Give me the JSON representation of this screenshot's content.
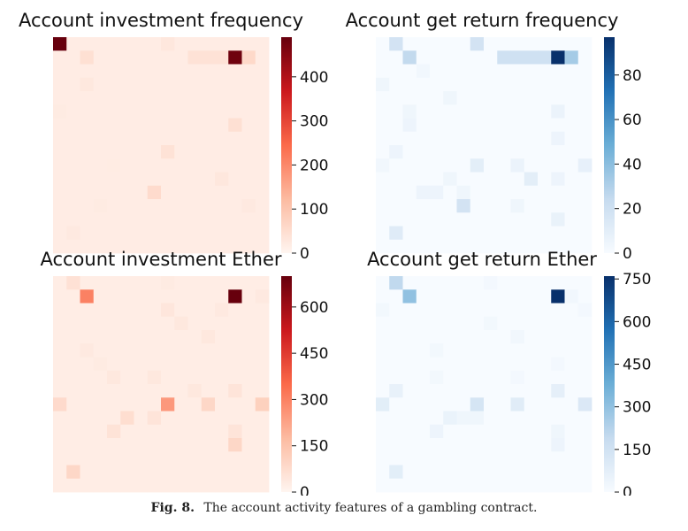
{
  "chart_data": [
    {
      "type": "heatmap",
      "title": "Account investment frequency",
      "colormap": "Reds",
      "colors": [
        "#fff5f0",
        "#fcbba1",
        "#fb6a4a",
        "#cb181d",
        "#67000d"
      ],
      "vmax": 490,
      "ticks": [
        0,
        100,
        200,
        300,
        400
      ],
      "rows": 16,
      "cols": 16,
      "base": 18,
      "cells": [
        [
          0,
          0,
          490
        ],
        [
          0,
          8,
          30
        ],
        [
          1,
          2,
          45
        ],
        [
          1,
          10,
          40
        ],
        [
          1,
          11,
          40
        ],
        [
          1,
          12,
          40
        ],
        [
          1,
          13,
          480
        ],
        [
          1,
          14,
          60
        ],
        [
          6,
          13,
          45
        ],
        [
          8,
          8,
          40
        ],
        [
          10,
          12,
          30
        ],
        [
          11,
          7,
          55
        ],
        [
          12,
          14,
          25
        ],
        [
          14,
          1,
          25
        ],
        [
          3,
          2,
          28
        ],
        [
          5,
          0,
          22
        ],
        [
          9,
          4,
          20
        ],
        [
          12,
          3,
          22
        ]
      ]
    },
    {
      "type": "heatmap",
      "title": "Account get return frequency",
      "colormap": "Blues",
      "colors": [
        "#f7fbff",
        "#c6dbef",
        "#6baed6",
        "#2171b5",
        "#08306b"
      ],
      "vmax": 97,
      "ticks": [
        0,
        20,
        40,
        60,
        80
      ],
      "rows": 16,
      "cols": 16,
      "base": 0,
      "cells": [
        [
          0,
          1,
          18
        ],
        [
          0,
          7,
          18
        ],
        [
          1,
          2,
          25
        ],
        [
          1,
          9,
          20
        ],
        [
          1,
          10,
          20
        ],
        [
          1,
          11,
          20
        ],
        [
          1,
          12,
          20
        ],
        [
          1,
          13,
          97
        ],
        [
          1,
          14,
          33
        ],
        [
          3,
          0,
          4
        ],
        [
          4,
          5,
          4
        ],
        [
          5,
          13,
          6
        ],
        [
          5,
          2,
          4
        ],
        [
          7,
          13,
          5
        ],
        [
          8,
          1,
          5
        ],
        [
          9,
          0,
          3
        ],
        [
          9,
          7,
          10
        ],
        [
          9,
          10,
          6
        ],
        [
          9,
          15,
          8
        ],
        [
          10,
          13,
          5
        ],
        [
          10,
          11,
          10
        ],
        [
          10,
          5,
          4
        ],
        [
          11,
          4,
          5
        ],
        [
          11,
          3,
          5
        ],
        [
          11,
          6,
          4
        ],
        [
          12,
          6,
          18
        ],
        [
          12,
          10,
          4
        ],
        [
          13,
          13,
          7
        ],
        [
          14,
          1,
          12
        ],
        [
          2,
          3,
          3
        ],
        [
          6,
          2,
          5
        ]
      ]
    },
    {
      "type": "heatmap",
      "title": "Account investment Ether",
      "colormap": "Reds",
      "colors": [
        "#fff5f0",
        "#fcbba1",
        "#fb6a4a",
        "#cb181d",
        "#67000d"
      ],
      "vmax": 700,
      "ticks": [
        0,
        150,
        300,
        450,
        600
      ],
      "rows": 16,
      "cols": 16,
      "base": 25,
      "cells": [
        [
          0,
          1,
          60
        ],
        [
          0,
          8,
          30
        ],
        [
          1,
          2,
          300
        ],
        [
          1,
          13,
          700
        ],
        [
          1,
          15,
          35
        ],
        [
          2,
          8,
          45
        ],
        [
          2,
          12,
          35
        ],
        [
          4,
          11,
          40
        ],
        [
          5,
          2,
          35
        ],
        [
          7,
          4,
          40
        ],
        [
          7,
          7,
          40
        ],
        [
          8,
          10,
          40
        ],
        [
          8,
          13,
          50
        ],
        [
          9,
          0,
          80
        ],
        [
          9,
          8,
          250
        ],
        [
          9,
          11,
          90
        ],
        [
          9,
          15,
          110
        ],
        [
          10,
          5,
          70
        ],
        [
          10,
          7,
          50
        ],
        [
          11,
          4,
          55
        ],
        [
          11,
          13,
          50
        ],
        [
          12,
          13,
          90
        ],
        [
          14,
          1,
          90
        ],
        [
          3,
          9,
          40
        ],
        [
          6,
          3,
          30
        ]
      ]
    },
    {
      "type": "heatmap",
      "title": "Account get return Ether",
      "colormap": "Blues",
      "colors": [
        "#f7fbff",
        "#c6dbef",
        "#6baed6",
        "#2171b5",
        "#08306b"
      ],
      "vmax": 760,
      "ticks": [
        0,
        150,
        300,
        450,
        600,
        750
      ],
      "rows": 16,
      "cols": 16,
      "base": 0,
      "cells": [
        [
          0,
          1,
          200
        ],
        [
          0,
          8,
          15
        ],
        [
          1,
          2,
          300
        ],
        [
          1,
          13,
          760
        ],
        [
          1,
          14,
          25
        ],
        [
          2,
          0,
          20
        ],
        [
          2,
          15,
          15
        ],
        [
          4,
          10,
          25
        ],
        [
          5,
          4,
          20
        ],
        [
          6,
          13,
          15
        ],
        [
          7,
          4,
          20
        ],
        [
          7,
          10,
          15
        ],
        [
          8,
          1,
          60
        ],
        [
          8,
          13,
          70
        ],
        [
          9,
          0,
          80
        ],
        [
          9,
          7,
          130
        ],
        [
          9,
          10,
          90
        ],
        [
          9,
          15,
          110
        ],
        [
          10,
          5,
          50
        ],
        [
          10,
          6,
          30
        ],
        [
          10,
          7,
          30
        ],
        [
          11,
          4,
          40
        ],
        [
          11,
          13,
          30
        ],
        [
          12,
          13,
          40
        ],
        [
          14,
          1,
          80
        ],
        [
          3,
          8,
          20
        ]
      ]
    }
  ],
  "caption": {
    "label": "Fig. 8.",
    "text": "The account activity features of a gambling contract."
  }
}
